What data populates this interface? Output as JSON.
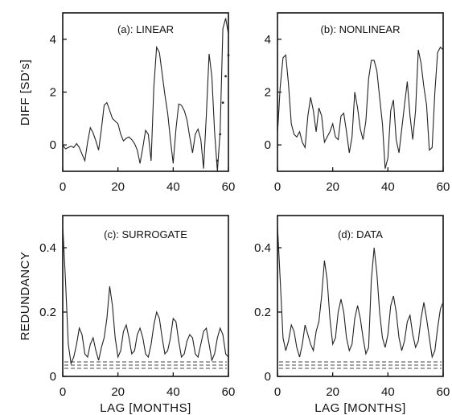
{
  "chart_data": [
    {
      "type": "line",
      "title": "(a): LINEAR",
      "ylabel": "DIFF [SD's]",
      "xlabel": "",
      "xlim": [
        0,
        60
      ],
      "ylim": [
        -1,
        5
      ],
      "xticks": [
        "0",
        "20",
        "40",
        "60"
      ],
      "xtick_values": [
        0,
        20,
        40,
        60
      ],
      "yticks": [
        "0",
        "2",
        "4"
      ],
      "ytick_values": [
        0,
        2,
        4
      ],
      "x": [
        0,
        1,
        2,
        3,
        4,
        5,
        6,
        7,
        8,
        9,
        10,
        11,
        12,
        13,
        14,
        15,
        16,
        17,
        18,
        19,
        20,
        21,
        22,
        23,
        24,
        25,
        26,
        27,
        28,
        29,
        30,
        31,
        32,
        33,
        34,
        35,
        36,
        37,
        38,
        39,
        40,
        41,
        42,
        43,
        44,
        45,
        46,
        47,
        48,
        49,
        50,
        51,
        52,
        53,
        54,
        55,
        56,
        57,
        58,
        59,
        60
      ],
      "series": [
        {
          "values": [
            0.0,
            -0.15,
            -0.1,
            -0.05,
            -0.1,
            0.05,
            -0.1,
            -0.35,
            -0.6,
            0.1,
            0.65,
            0.45,
            0.15,
            -0.2,
            0.6,
            1.5,
            1.6,
            1.3,
            1.0,
            0.9,
            0.8,
            0.4,
            0.15,
            0.25,
            0.3,
            0.2,
            0.05,
            -0.2,
            -0.7,
            -0.1,
            0.55,
            0.4,
            -0.6,
            2.2,
            3.7,
            3.5,
            2.7,
            1.9,
            1.2,
            0.2,
            -0.7,
            0.6,
            1.55,
            1.5,
            1.3,
            0.95,
            0.3,
            -0.3,
            0.4,
            0.6,
            0.2,
            -0.9,
            1.1,
            3.45,
            2.6,
            0.5,
            -1.0,
            0.5,
            4.4,
            4.8,
            4.2
          ]
        }
      ],
      "dotted_series": [
        {
          "x": [
            56,
            57,
            58,
            59,
            60
          ],
          "values": [
            -0.6,
            0.4,
            1.6,
            2.6,
            3.4
          ]
        }
      ]
    },
    {
      "type": "line",
      "title": "(b): NONLINEAR",
      "ylabel": "",
      "xlabel": "",
      "xlim": [
        0,
        60
      ],
      "ylim": [
        -1,
        5
      ],
      "xticks": [
        "0",
        "20",
        "40",
        "60"
      ],
      "xtick_values": [
        0,
        20,
        40,
        60
      ],
      "yticks": [
        "0",
        "2",
        "4"
      ],
      "ytick_values": [
        0,
        2,
        4
      ],
      "x": [
        0,
        1,
        2,
        3,
        4,
        5,
        6,
        7,
        8,
        9,
        10,
        11,
        12,
        13,
        14,
        15,
        16,
        17,
        18,
        19,
        20,
        21,
        22,
        23,
        24,
        25,
        26,
        27,
        28,
        29,
        30,
        31,
        32,
        33,
        34,
        35,
        36,
        37,
        38,
        39,
        40,
        41,
        42,
        43,
        44,
        45,
        46,
        47,
        48,
        49,
        50,
        51,
        52,
        53,
        54,
        55,
        56,
        57,
        58,
        59,
        60
      ],
      "series": [
        {
          "values": [
            0.4,
            2.2,
            3.3,
            3.4,
            2.3,
            0.8,
            0.4,
            0.3,
            0.5,
            0.1,
            -0.1,
            1.1,
            1.8,
            1.3,
            0.5,
            1.4,
            1.1,
            0.1,
            0.3,
            0.5,
            0.8,
            0.3,
            0.2,
            1.1,
            1.2,
            0.5,
            -0.3,
            0.3,
            2.0,
            1.4,
            0.6,
            0.2,
            0.9,
            2.5,
            3.2,
            3.2,
            2.8,
            1.8,
            0.8,
            -0.9,
            -0.5,
            1.3,
            1.7,
            0.2,
            -0.3,
            0.6,
            1.5,
            2.4,
            1.1,
            0.2,
            1.3,
            3.6,
            3.1,
            2.2,
            1.5,
            -0.2,
            -0.1,
            2.0,
            3.5,
            3.7,
            3.6
          ]
        }
      ]
    },
    {
      "type": "line",
      "title": "(c): SURROGATE",
      "ylabel": "REDUNDANCY",
      "xlabel": "LAG [MONTHS]",
      "xlim": [
        0,
        60
      ],
      "ylim": [
        0,
        0.5
      ],
      "xticks": [
        "0",
        "20",
        "40",
        "60"
      ],
      "xtick_values": [
        0,
        20,
        40,
        60
      ],
      "yticks": [
        "0",
        "0.2",
        "0.4"
      ],
      "ytick_values": [
        0,
        0.2,
        0.4
      ],
      "x": [
        0,
        1,
        2,
        3,
        4,
        5,
        6,
        7,
        8,
        9,
        10,
        11,
        12,
        13,
        14,
        15,
        16,
        17,
        18,
        19,
        20,
        21,
        22,
        23,
        24,
        25,
        26,
        27,
        28,
        29,
        30,
        31,
        32,
        33,
        34,
        35,
        36,
        37,
        38,
        39,
        40,
        41,
        42,
        43,
        44,
        45,
        46,
        47,
        48,
        49,
        50,
        51,
        52,
        53,
        54,
        55,
        56,
        57,
        58,
        59,
        60
      ],
      "series": [
        {
          "values": [
            0.47,
            0.3,
            0.1,
            0.04,
            0.06,
            0.1,
            0.15,
            0.13,
            0.07,
            0.06,
            0.1,
            0.12,
            0.08,
            0.05,
            0.09,
            0.12,
            0.18,
            0.28,
            0.22,
            0.12,
            0.06,
            0.08,
            0.14,
            0.16,
            0.12,
            0.07,
            0.08,
            0.13,
            0.15,
            0.12,
            0.07,
            0.06,
            0.1,
            0.16,
            0.2,
            0.18,
            0.12,
            0.07,
            0.08,
            0.12,
            0.18,
            0.17,
            0.11,
            0.06,
            0.07,
            0.11,
            0.13,
            0.12,
            0.07,
            0.06,
            0.1,
            0.14,
            0.15,
            0.1,
            0.05,
            0.07,
            0.12,
            0.15,
            0.13,
            0.07,
            0.06
          ]
        }
      ],
      "reference_lines": [
        0.025,
        0.035,
        0.045
      ]
    },
    {
      "type": "line",
      "title": "(d): DATA",
      "ylabel": "",
      "xlabel": "LAG [MONTHS]",
      "xlim": [
        0,
        60
      ],
      "ylim": [
        0,
        0.5
      ],
      "xticks": [
        "0",
        "20",
        "40",
        "60"
      ],
      "xtick_values": [
        0,
        20,
        40,
        60
      ],
      "yticks": [
        "0",
        "0.2",
        "0.4"
      ],
      "ytick_values": [
        0,
        0.2,
        0.4
      ],
      "x": [
        0,
        1,
        2,
        3,
        4,
        5,
        6,
        7,
        8,
        9,
        10,
        11,
        12,
        13,
        14,
        15,
        16,
        17,
        18,
        19,
        20,
        21,
        22,
        23,
        24,
        25,
        26,
        27,
        28,
        29,
        30,
        31,
        32,
        33,
        34,
        35,
        36,
        37,
        38,
        39,
        40,
        41,
        42,
        43,
        44,
        45,
        46,
        47,
        48,
        49,
        50,
        51,
        52,
        53,
        54,
        55,
        56,
        57,
        58,
        59,
        60
      ],
      "series": [
        {
          "values": [
            0.47,
            0.3,
            0.12,
            0.08,
            0.11,
            0.16,
            0.14,
            0.09,
            0.06,
            0.1,
            0.16,
            0.13,
            0.1,
            0.08,
            0.14,
            0.17,
            0.25,
            0.36,
            0.3,
            0.18,
            0.1,
            0.12,
            0.2,
            0.24,
            0.2,
            0.12,
            0.08,
            0.1,
            0.18,
            0.22,
            0.18,
            0.12,
            0.07,
            0.09,
            0.3,
            0.4,
            0.32,
            0.2,
            0.12,
            0.09,
            0.13,
            0.22,
            0.25,
            0.2,
            0.12,
            0.08,
            0.11,
            0.17,
            0.19,
            0.13,
            0.09,
            0.11,
            0.18,
            0.23,
            0.18,
            0.12,
            0.06,
            0.08,
            0.15,
            0.21,
            0.23
          ]
        }
      ],
      "reference_lines": [
        0.025,
        0.035,
        0.045
      ]
    }
  ]
}
